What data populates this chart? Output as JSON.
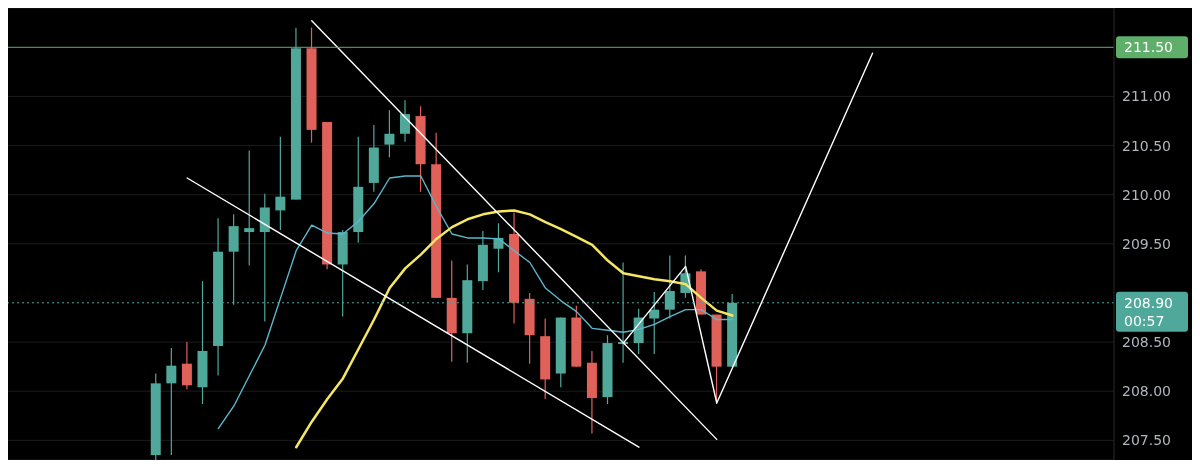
{
  "chart_data": {
    "type": "candlestick",
    "categories": [
      null,
      null,
      null,
      null,
      null,
      null,
      null,
      null,
      null,
      null,
      null,
      null,
      null,
      null,
      null,
      null,
      null,
      null,
      null,
      null,
      null,
      null,
      null,
      null,
      null,
      null,
      null,
      null,
      null,
      null,
      null,
      null,
      null,
      null,
      null,
      null,
      null,
      null,
      null,
      null,
      null,
      null,
      null,
      null,
      null,
      null,
      null,
      null,
      null,
      null,
      null,
      null,
      null,
      null,
      null,
      null,
      null,
      null,
      null,
      null,
      null,
      null,
      null,
      null,
      null,
      null,
      null,
      null,
      null,
      null,
      null
    ],
    "ohlc": [
      null,
      null,
      null,
      null,
      null,
      null,
      null,
      null,
      null,
      [
        207.35,
        208.18,
        207.3,
        208.08
      ],
      [
        208.08,
        208.44,
        207.35,
        208.26
      ],
      [
        208.28,
        208.5,
        208.02,
        208.06
      ],
      [
        208.04,
        209.12,
        207.87,
        208.41
      ],
      [
        208.46,
        209.76,
        208.16,
        209.42
      ],
      [
        209.42,
        209.8,
        208.88,
        209.68
      ],
      [
        209.62,
        210.45,
        209.28,
        209.66
      ],
      [
        209.62,
        210.01,
        208.71,
        209.87
      ],
      [
        209.84,
        210.59,
        209.64,
        209.98
      ],
      [
        209.95,
        211.7,
        209.95,
        211.49
      ],
      [
        211.49,
        211.7,
        210.53,
        210.66
      ],
      [
        210.74,
        210.74,
        209.24,
        209.29
      ],
      [
        209.29,
        209.64,
        208.76,
        209.62
      ],
      [
        209.62,
        210.59,
        209.51,
        210.08
      ],
      [
        210.12,
        210.71,
        210.03,
        210.48
      ],
      [
        210.51,
        210.86,
        210.38,
        210.62
      ],
      [
        210.62,
        210.96,
        210.54,
        210.82
      ],
      [
        210.8,
        210.9,
        210.03,
        210.31
      ],
      [
        210.31,
        210.63,
        208.95,
        208.95
      ],
      [
        208.95,
        209.33,
        208.3,
        208.59
      ],
      [
        208.59,
        209.29,
        208.29,
        209.13
      ],
      [
        209.12,
        209.63,
        209.03,
        209.49
      ],
      [
        209.45,
        209.71,
        209.21,
        209.56
      ],
      [
        209.6,
        209.82,
        208.69,
        208.9
      ],
      [
        208.94,
        209.0,
        208.28,
        208.57
      ],
      [
        208.56,
        208.74,
        207.92,
        208.12
      ],
      [
        208.18,
        208.75,
        208.04,
        208.75
      ],
      [
        208.75,
        208.87,
        208.25,
        208.25
      ],
      [
        208.29,
        208.41,
        207.57,
        207.93
      ],
      [
        207.94,
        208.57,
        207.87,
        208.49
      ],
      [
        208.48,
        209.31,
        208.29,
        208.5
      ],
      [
        208.49,
        208.84,
        208.38,
        208.75
      ],
      [
        208.74,
        209.01,
        208.38,
        208.83
      ],
      [
        208.83,
        209.38,
        208.74,
        209.02
      ],
      [
        209.0,
        209.38,
        208.95,
        209.2
      ],
      [
        209.22,
        209.24,
        208.78,
        208.78
      ],
      [
        208.78,
        208.78,
        207.87,
        208.25
      ],
      [
        208.25,
        208.99,
        208.25,
        208.9
      ],
      null,
      null,
      null,
      null,
      null,
      null,
      null,
      null,
      null,
      null,
      null,
      null,
      null,
      null,
      null,
      null,
      null,
      null,
      null,
      null,
      null,
      null,
      null,
      null
    ],
    "colors": [
      null,
      null,
      null,
      null,
      null,
      null,
      null,
      null,
      null,
      "#4fa89a",
      "#4fa89a",
      "#e0605a",
      "#4fa89a",
      "#4fa89a",
      "#4fa89a",
      "#4fa89a",
      "#4fa89a",
      "#4fa89a",
      "#4fa89a",
      "#e0605a",
      "#e0605a",
      "#4fa89a",
      "#4fa89a",
      "#4fa89a",
      "#4fa89a",
      "#4fa89a",
      "#e0605a",
      "#e0605a",
      "#e0605a",
      "#4fa89a",
      "#4fa89a",
      "#4fa89a",
      "#e0605a",
      "#e0605a",
      "#e0605a",
      "#4fa89a",
      "#e0605a",
      "#e0605a",
      "#4fa89a",
      "#4fa89a",
      "#4fa89a",
      "#4fa89a",
      "#4fa89a",
      "#4fa89a",
      "#e0605a",
      "#e0605a",
      "#4fa89a",
      null,
      null,
      null,
      null,
      null,
      null,
      null,
      null,
      null,
      null,
      null,
      null,
      null,
      null,
      null,
      null,
      null,
      null,
      null,
      null,
      null,
      null,
      null,
      null
    ],
    "series": [
      {
        "type": "line",
        "color": "#5bb8cc",
        "values": [
          null,
          null,
          null,
          null,
          null,
          null,
          null,
          null,
          null,
          null,
          null,
          null,
          null,
          207.62,
          207.85,
          208.16,
          208.47,
          208.95,
          209.43,
          209.69,
          209.61,
          209.6,
          209.73,
          209.91,
          210.17,
          210.19,
          210.19,
          209.88,
          209.6,
          209.56,
          209.56,
          209.55,
          209.43,
          209.31,
          209.05,
          208.92,
          208.81,
          208.64,
          208.62,
          208.6,
          208.63,
          208.68,
          208.76,
          208.83,
          208.83,
          208.73,
          208.73,
          null,
          null,
          null,
          null,
          null,
          null,
          null,
          null,
          null,
          null,
          null,
          null,
          null,
          null,
          null,
          null,
          null,
          null,
          null,
          null,
          null,
          null,
          null,
          null
        ]
      },
      {
        "type": "line",
        "color": "#f5e663",
        "values": [
          null,
          null,
          null,
          null,
          null,
          null,
          null,
          null,
          null,
          null,
          null,
          null,
          null,
          null,
          null,
          null,
          null,
          null,
          207.43,
          207.69,
          207.92,
          208.13,
          208.43,
          208.73,
          209.05,
          209.25,
          209.39,
          209.55,
          209.67,
          209.75,
          209.8,
          209.83,
          209.84,
          209.8,
          209.72,
          209.65,
          209.57,
          209.49,
          209.33,
          209.2,
          209.17,
          209.14,
          209.12,
          209.09,
          208.95,
          208.82,
          208.77,
          null,
          null,
          null,
          null,
          null,
          null,
          null,
          null,
          null,
          null,
          null,
          null,
          null,
          null,
          null,
          null,
          null,
          null,
          null,
          null,
          null,
          null,
          null,
          null
        ]
      },
      {
        "type": "line",
        "color": "#ffffff",
        "values": [
          null,
          null,
          null,
          null,
          null,
          null,
          null,
          null,
          null,
          null,
          null,
          null,
          null,
          null,
          null,
          null,
          null,
          null,
          null,
          211.77,
          null,
          null,
          null,
          null,
          null,
          null,
          null,
          null,
          null,
          null,
          null,
          null,
          null,
          null,
          null,
          null,
          null,
          null,
          null,
          null,
          null,
          null,
          null,
          null,
          null,
          207.51,
          null,
          null,
          null,
          null,
          null,
          null,
          null,
          null,
          null,
          null,
          null,
          null,
          null,
          null,
          null,
          null,
          null,
          null,
          null,
          null,
          null,
          null,
          null,
          null,
          null
        ]
      },
      {
        "type": "line",
        "color": "#ffffff",
        "values": [
          null,
          null,
          null,
          null,
          null,
          null,
          null,
          null,
          null,
          null,
          null,
          210.17,
          null,
          null,
          null,
          null,
          null,
          null,
          null,
          null,
          null,
          null,
          null,
          null,
          null,
          null,
          null,
          null,
          null,
          null,
          null,
          null,
          null,
          null,
          null,
          null,
          null,
          null,
          null,
          null,
          207.43,
          null,
          null,
          null,
          null,
          null,
          null,
          null,
          null,
          null,
          null,
          null,
          null,
          null,
          null,
          null,
          null,
          null,
          null,
          null,
          null,
          null,
          null,
          null,
          null,
          null,
          null,
          null,
          null,
          null,
          null
        ]
      },
      {
        "type": "line",
        "color": "#ffffff",
        "values": [
          null,
          null,
          null,
          null,
          null,
          null,
          null,
          null,
          null,
          null,
          null,
          null,
          null,
          null,
          null,
          null,
          null,
          null,
          null,
          null,
          null,
          null,
          null,
          null,
          null,
          null,
          null,
          null,
          null,
          null,
          null,
          null,
          null,
          null,
          null,
          null,
          null,
          null,
          null,
          208.49,
          null,
          null,
          null,
          209.27,
          null,
          207.88,
          null,
          null,
          null,
          null,
          null,
          null,
          null,
          null,
          null,
          211.44,
          null,
          null,
          null,
          null,
          null,
          null,
          null,
          null,
          null,
          null,
          null,
          null,
          null,
          null,
          null
        ]
      }
    ],
    "ylim": [
      207.3,
      211.9
    ],
    "yticks": [
      {
        "value": 207.5,
        "label": "207.50"
      },
      {
        "value": 208,
        "label": "208.00"
      },
      {
        "value": 208.5,
        "label": "208.50"
      },
      {
        "value": 209.5,
        "label": "209.50"
      },
      {
        "value": 210,
        "label": "210.00"
      },
      {
        "value": 210.5,
        "label": "210.50"
      },
      {
        "value": 211,
        "label": "211.00"
      }
    ],
    "tick_labels": "y",
    "grid": "y",
    "marker": "none",
    "line_style": "solid",
    "ref_lines": [
      {
        "axis": "y",
        "value": 211.5,
        "label": "211.50",
        "color": "#5fae6a",
        "line_style": "solid"
      },
      {
        "axis": "y",
        "value": 208.9,
        "label": "208.90",
        "color": "#4fa89a",
        "line_style": "dotted"
      }
    ],
    "annotations": [
      "00:57"
    ]
  }
}
